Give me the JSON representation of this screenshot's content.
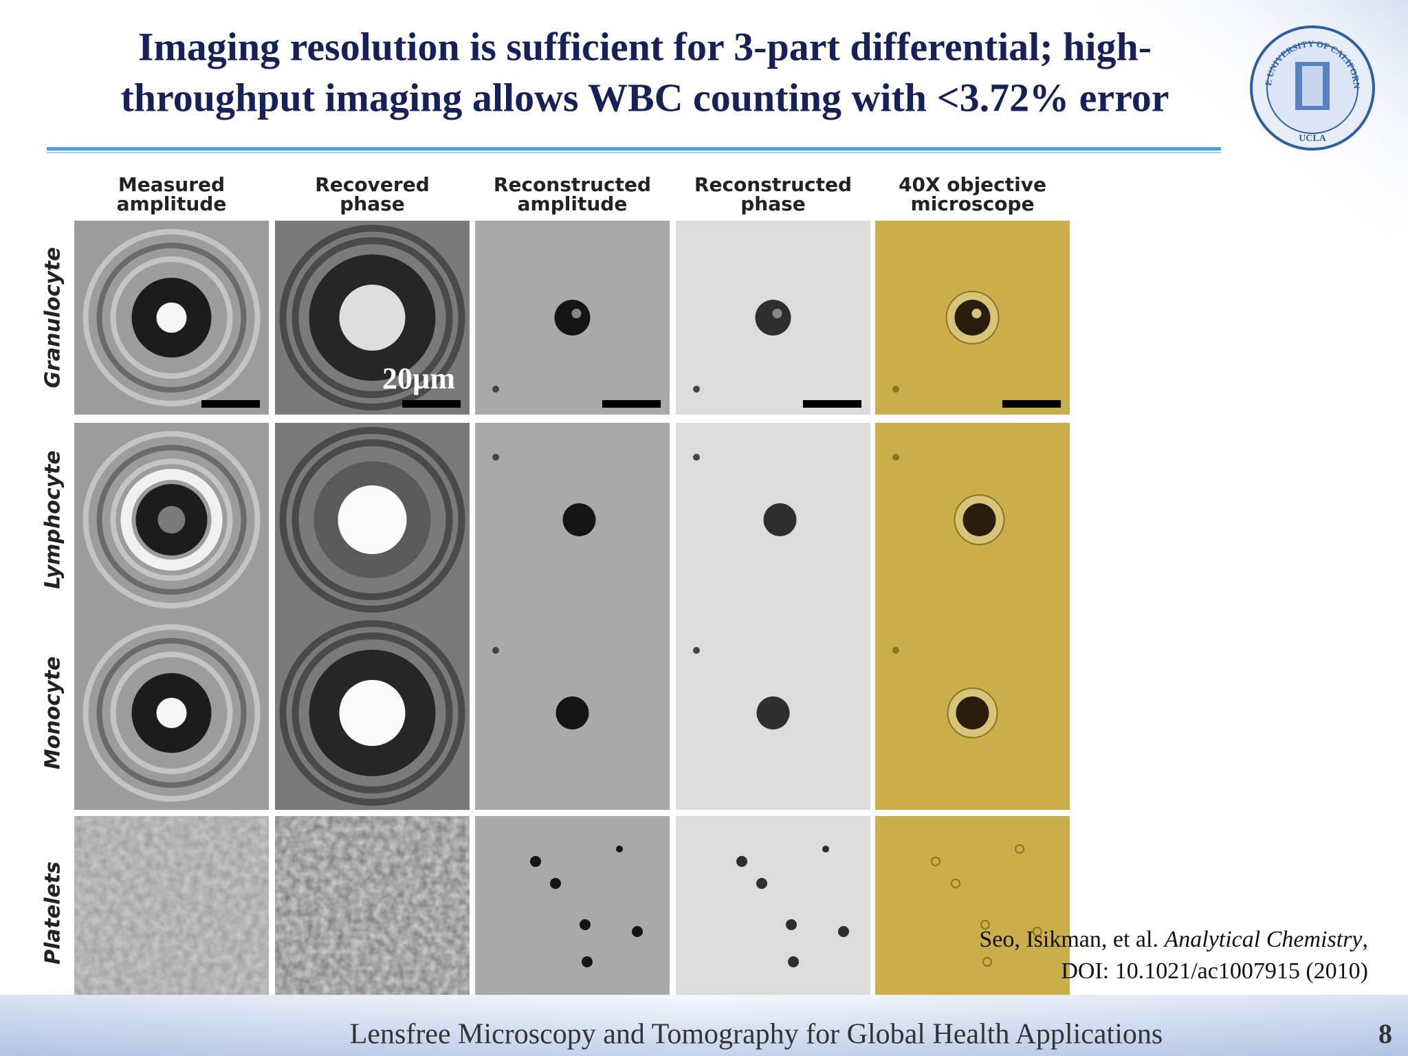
{
  "header": {
    "title_lines": [
      "Imaging resolution is sufficient for 3-part differential; high-",
      "throughput imaging allows WBC counting with <3.72% error"
    ]
  },
  "logo": {
    "text": "THE UNIVERSITY OF CALIFORNIA",
    "campus": "UCLA"
  },
  "figure": {
    "columns": [
      [
        "Measured",
        "amplitude"
      ],
      [
        "Recovered",
        "phase"
      ],
      [
        "Reconstructed",
        "amplitude"
      ],
      [
        "Reconstructed",
        "phase"
      ],
      [
        "40X objective",
        "microscope"
      ]
    ],
    "rows": [
      "Granulocyte",
      "Lymphocyte",
      "Monocyte",
      "Platelets"
    ],
    "scale_bar_label": "20µm"
  },
  "citation": {
    "authors": "Seo, Isikman, et al.",
    "journal": "Analytical Chemistry",
    "punctuation": ",",
    "doi": "DOI: 10.1021/ac1007915 (2010)"
  },
  "footer": {
    "title": "Lensfree Microscopy and Tomography for Global Health Applications",
    "page": "8"
  }
}
